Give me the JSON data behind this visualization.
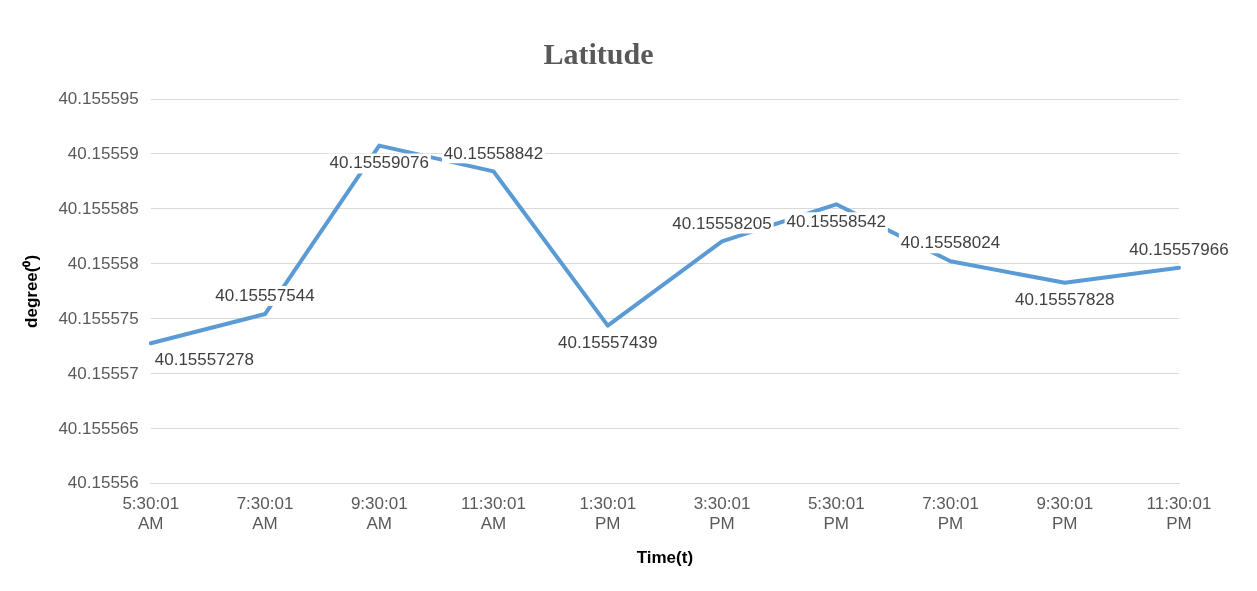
{
  "chart_data": {
    "type": "line",
    "title": "Latitude",
    "xlabel": "Time(t)",
    "ylabel": "degree(⁰)",
    "categories": [
      "5:30:01 AM",
      "7:30:01 AM",
      "9:30:01 AM",
      "11:30:01 AM",
      "1:30:01 PM",
      "3:30:01 PM",
      "5:30:01 PM",
      "7:30:01 PM",
      "9:30:01 PM",
      "11:30:01 PM"
    ],
    "series": [
      {
        "color": "#5b9bd5",
        "values": [
          40.15557278,
          40.15557544,
          40.15559076,
          40.15558842,
          40.15557439,
          40.15558205,
          40.15558542,
          40.15558024,
          40.15557828,
          40.15557966
        ]
      }
    ],
    "ylim": [
      40.15556,
      40.155595
    ],
    "yticks": [
      40.15556,
      40.155565,
      40.15557,
      40.155575,
      40.15558,
      40.155585,
      40.15559,
      40.155595
    ],
    "grid": "y",
    "legend": false,
    "marker": "none",
    "line_style": "solid",
    "data_labels": true
  }
}
